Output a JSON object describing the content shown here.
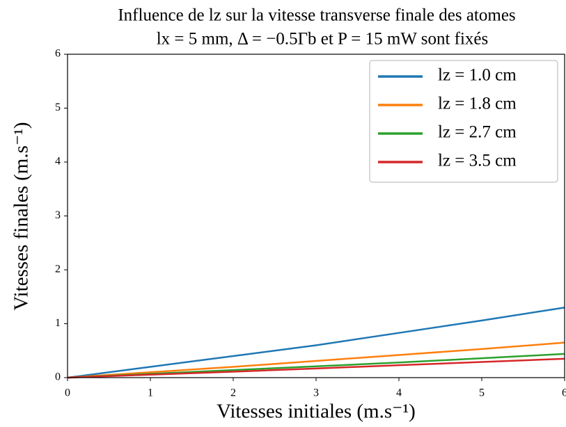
{
  "chart_data": {
    "type": "line",
    "title": "Influence de lz sur la vitesse transverse finale des atomes",
    "subtitle": "lx = 5 mm, Δ = −0.5Γb et P = 15 mW sont fixés",
    "xlabel": "Vitesses initiales (m.s⁻¹)",
    "ylabel": "Vitesses finales (m.s⁻¹)",
    "x": [
      0,
      1,
      2,
      3,
      4,
      5,
      6
    ],
    "series": [
      {
        "name": "lz = 1.0 cm",
        "color": "#1f77b4",
        "values": [
          0,
          0.2,
          0.4,
          0.6,
          0.83,
          1.06,
          1.3
        ]
      },
      {
        "name": "lz = 1.8 cm",
        "color": "#ff7f0e",
        "values": [
          0,
          0.1,
          0.2,
          0.31,
          0.42,
          0.53,
          0.65
        ]
      },
      {
        "name": "lz = 2.7 cm",
        "color": "#2ca02c",
        "values": [
          0,
          0.07,
          0.14,
          0.21,
          0.28,
          0.36,
          0.44
        ]
      },
      {
        "name": "lz = 3.5 cm",
        "color": "#d62728",
        "values": [
          0,
          0.055,
          0.11,
          0.17,
          0.23,
          0.29,
          0.35
        ]
      }
    ],
    "xlim": [
      0,
      6
    ],
    "xticks": [
      0,
      1,
      2,
      3,
      4,
      5,
      6
    ],
    "ylim": [
      0,
      6
    ],
    "yticks": [
      0,
      1,
      2,
      3,
      4,
      5,
      6
    ],
    "legend": "upper right",
    "grid": false
  }
}
